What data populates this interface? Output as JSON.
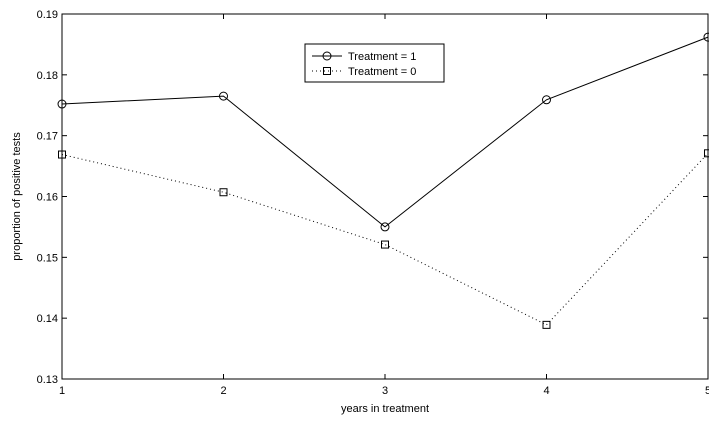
{
  "chart_data": {
    "type": "line",
    "title": "",
    "xlabel": "years in treatment",
    "ylabel": "proportion of positive tests",
    "xlim": [
      1,
      5
    ],
    "ylim": [
      0.13,
      0.19
    ],
    "xticks": [
      1,
      2,
      3,
      4,
      5
    ],
    "yticks": [
      0.13,
      0.14,
      0.15,
      0.16,
      0.17,
      0.18,
      0.19
    ],
    "ytick_labels": [
      "0.13",
      "0.14",
      "0.15",
      "0.16",
      "0.17",
      "0.18",
      "0.19"
    ],
    "grid": false,
    "legend_position": "top-center",
    "series": [
      {
        "name": "Treatment = 1",
        "line_style": "solid",
        "marker": "circle",
        "color": "#000000",
        "x": [
          1,
          2,
          3,
          4,
          5
        ],
        "values": [
          0.1752,
          0.1765,
          0.155,
          0.1759,
          0.1862
        ]
      },
      {
        "name": "Treatment = 0",
        "line_style": "dotted",
        "marker": "square",
        "color": "#000000",
        "x": [
          1,
          2,
          3,
          4,
          5
        ],
        "values": [
          0.1669,
          0.1607,
          0.1521,
          0.1389,
          0.1671
        ]
      }
    ]
  }
}
